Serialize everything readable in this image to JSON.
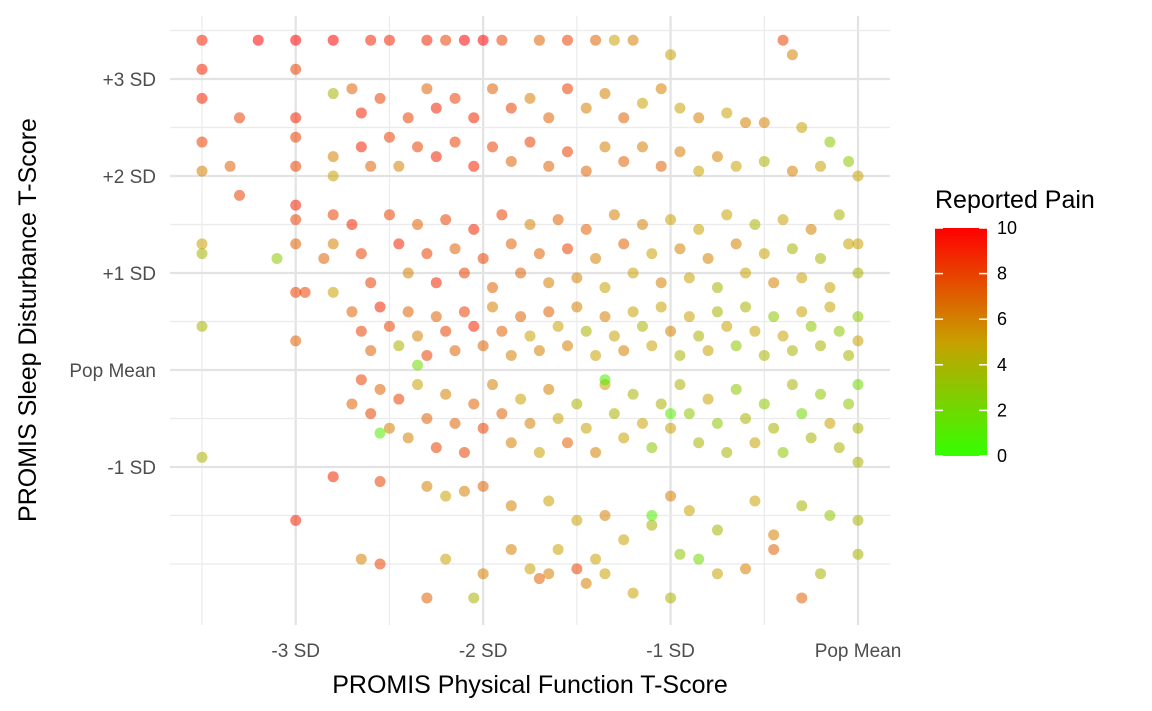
{
  "chart_data": {
    "type": "scatter",
    "xlabel": "PROMIS Physical Function T-Score",
    "ylabel": "PROMIS Sleep Disturbance T-Score",
    "xlim": [
      -3.5,
      0.1
    ],
    "ylim": [
      -2.6,
      3.5
    ],
    "x_ticks": [
      {
        "value": -3,
        "label": "-3 SD"
      },
      {
        "value": -2,
        "label": "-2 SD"
      },
      {
        "value": -1,
        "label": "-1 SD"
      },
      {
        "value": 0,
        "label": "Pop Mean"
      }
    ],
    "y_ticks": [
      {
        "value": 3,
        "label": "+3 SD"
      },
      {
        "value": 2,
        "label": "+2 SD"
      },
      {
        "value": 1,
        "label": "+1 SD"
      },
      {
        "value": 0,
        "label": "Pop Mean"
      },
      {
        "value": -1,
        "label": "-1 SD"
      }
    ],
    "grid": true,
    "color_scale": {
      "title": "Reported Pain",
      "min": 0,
      "max": 10,
      "ticks": [
        "0",
        "2",
        "4",
        "6",
        "8",
        "10"
      ],
      "low_color": "#33ff00",
      "mid_color": "#c8a000",
      "high_color": "#ff0000"
    },
    "legend_position": "right",
    "point_opacity": 0.55,
    "points": [
      [
        -3.5,
        3.4,
        9
      ],
      [
        -3.2,
        3.4,
        10
      ],
      [
        -3.0,
        3.4,
        10
      ],
      [
        -2.8,
        3.4,
        10
      ],
      [
        -2.6,
        3.4,
        9
      ],
      [
        -2.5,
        3.4,
        9
      ],
      [
        -2.3,
        3.4,
        9
      ],
      [
        -2.2,
        3.4,
        8
      ],
      [
        -2.1,
        3.4,
        10
      ],
      [
        -2.0,
        3.4,
        10
      ],
      [
        -1.9,
        3.4,
        8
      ],
      [
        -1.7,
        3.4,
        7
      ],
      [
        -1.55,
        3.4,
        8
      ],
      [
        -1.4,
        3.4,
        7
      ],
      [
        -1.3,
        3.4,
        5
      ],
      [
        -1.2,
        3.4,
        6
      ],
      [
        -1.0,
        3.25,
        5
      ],
      [
        -0.4,
        3.4,
        8
      ],
      [
        -0.35,
        3.25,
        6
      ],
      [
        -3.5,
        3.1,
        9
      ],
      [
        -3.5,
        2.8,
        9
      ],
      [
        -3.3,
        2.6,
        8
      ],
      [
        -3.0,
        2.6,
        9
      ],
      [
        -3.0,
        3.1,
        8
      ],
      [
        -2.8,
        2.85,
        4
      ],
      [
        -2.7,
        2.9,
        7
      ],
      [
        -2.65,
        2.65,
        9
      ],
      [
        -2.55,
        2.8,
        8
      ],
      [
        -2.4,
        2.6,
        8
      ],
      [
        -2.3,
        2.9,
        7
      ],
      [
        -2.25,
        2.7,
        9
      ],
      [
        -2.15,
        2.8,
        8
      ],
      [
        -2.05,
        2.6,
        9
      ],
      [
        -1.95,
        2.9,
        7
      ],
      [
        -1.85,
        2.7,
        8
      ],
      [
        -1.75,
        2.8,
        6
      ],
      [
        -1.65,
        2.6,
        7
      ],
      [
        -1.55,
        2.9,
        8
      ],
      [
        -1.45,
        2.7,
        6
      ],
      [
        -1.35,
        2.85,
        6
      ],
      [
        -1.25,
        2.6,
        7
      ],
      [
        -1.15,
        2.75,
        5
      ],
      [
        -1.05,
        2.9,
        6
      ],
      [
        -0.95,
        2.7,
        5
      ],
      [
        -0.85,
        2.6,
        6
      ],
      [
        -0.7,
        2.65,
        5
      ],
      [
        -0.6,
        2.55,
        6
      ],
      [
        -0.5,
        2.55,
        6
      ],
      [
        -0.3,
        2.5,
        5
      ],
      [
        -3.5,
        2.35,
        8
      ],
      [
        -3.35,
        2.1,
        7
      ],
      [
        -3.3,
        1.8,
        8
      ],
      [
        -3.0,
        2.4,
        8
      ],
      [
        -3.0,
        2.1,
        8
      ],
      [
        -2.8,
        2.2,
        6
      ],
      [
        -2.8,
        2.0,
        5
      ],
      [
        -2.65,
        2.3,
        9
      ],
      [
        -2.6,
        2.1,
        7
      ],
      [
        -2.5,
        2.4,
        8
      ],
      [
        -2.45,
        2.1,
        6
      ],
      [
        -2.35,
        2.3,
        8
      ],
      [
        -2.25,
        2.2,
        9
      ],
      [
        -2.15,
        2.35,
        8
      ],
      [
        -2.05,
        2.1,
        9
      ],
      [
        -1.95,
        2.3,
        8
      ],
      [
        -1.85,
        2.15,
        7
      ],
      [
        -1.75,
        2.35,
        8
      ],
      [
        -1.65,
        2.1,
        7
      ],
      [
        -1.55,
        2.25,
        8
      ],
      [
        -1.45,
        2.05,
        7
      ],
      [
        -1.35,
        2.3,
        6
      ],
      [
        -1.25,
        2.15,
        7
      ],
      [
        -1.15,
        2.3,
        6
      ],
      [
        -1.05,
        2.1,
        7
      ],
      [
        -0.95,
        2.25,
        6
      ],
      [
        -0.85,
        2.05,
        5
      ],
      [
        -0.75,
        2.2,
        6
      ],
      [
        -0.65,
        2.1,
        5
      ],
      [
        -0.5,
        2.15,
        4
      ],
      [
        -0.35,
        2.05,
        6
      ],
      [
        -0.2,
        2.1,
        5
      ],
      [
        -0.05,
        2.15,
        3
      ],
      [
        0.0,
        2.0,
        5
      ],
      [
        -0.15,
        2.35,
        3
      ],
      [
        -3.5,
        2.05,
        6
      ],
      [
        -3.5,
        1.3,
        5
      ],
      [
        -3.5,
        1.2,
        4
      ],
      [
        -3.1,
        1.15,
        3
      ],
      [
        -3.0,
        1.7,
        9
      ],
      [
        -3.0,
        1.55,
        8
      ],
      [
        -3.0,
        1.3,
        7
      ],
      [
        -3.0,
        0.8,
        8
      ],
      [
        -2.95,
        0.8,
        8
      ],
      [
        -2.85,
        1.15,
        7
      ],
      [
        -2.8,
        1.6,
        8
      ],
      [
        -2.8,
        1.3,
        6
      ],
      [
        -2.7,
        1.5,
        9
      ],
      [
        -2.65,
        1.2,
        8
      ],
      [
        -2.6,
        0.9,
        8
      ],
      [
        -2.5,
        1.6,
        8
      ],
      [
        -2.45,
        1.3,
        9
      ],
      [
        -2.4,
        1.0,
        6
      ],
      [
        -2.35,
        1.5,
        7
      ],
      [
        -2.3,
        1.2,
        8
      ],
      [
        -2.25,
        0.9,
        9
      ],
      [
        -2.2,
        1.55,
        8
      ],
      [
        -2.15,
        1.25,
        7
      ],
      [
        -2.1,
        1.0,
        8
      ],
      [
        -2.05,
        1.45,
        9
      ],
      [
        -2.0,
        1.15,
        8
      ],
      [
        -1.95,
        0.85,
        7
      ],
      [
        -1.9,
        1.6,
        8
      ],
      [
        -1.85,
        1.3,
        7
      ],
      [
        -1.8,
        1.0,
        7
      ],
      [
        -1.75,
        1.5,
        6
      ],
      [
        -1.7,
        1.2,
        7
      ],
      [
        -1.65,
        0.9,
        6
      ],
      [
        -1.6,
        1.55,
        7
      ],
      [
        -1.55,
        1.25,
        8
      ],
      [
        -1.5,
        0.95,
        6
      ],
      [
        -1.45,
        1.45,
        7
      ],
      [
        -1.4,
        1.15,
        6
      ],
      [
        -1.35,
        0.85,
        5
      ],
      [
        -1.3,
        1.6,
        6
      ],
      [
        -1.25,
        1.3,
        7
      ],
      [
        -1.2,
        1.0,
        5
      ],
      [
        -1.15,
        1.5,
        6
      ],
      [
        -1.1,
        1.2,
        5
      ],
      [
        -1.05,
        0.9,
        6
      ],
      [
        -1.0,
        1.55,
        5
      ],
      [
        -0.95,
        1.25,
        6
      ],
      [
        -0.9,
        0.95,
        5
      ],
      [
        -0.85,
        1.45,
        5
      ],
      [
        -0.8,
        1.15,
        6
      ],
      [
        -0.75,
        0.85,
        4
      ],
      [
        -0.7,
        1.6,
        5
      ],
      [
        -0.65,
        1.3,
        6
      ],
      [
        -0.6,
        1.0,
        5
      ],
      [
        -0.55,
        1.5,
        4
      ],
      [
        -0.5,
        1.2,
        5
      ],
      [
        -0.45,
        0.9,
        6
      ],
      [
        -0.4,
        1.55,
        5
      ],
      [
        -0.35,
        1.25,
        4
      ],
      [
        -0.3,
        0.95,
        5
      ],
      [
        -0.25,
        1.45,
        6
      ],
      [
        -0.2,
        1.15,
        4
      ],
      [
        -0.15,
        0.85,
        5
      ],
      [
        -0.1,
        1.6,
        4
      ],
      [
        -0.05,
        1.3,
        5
      ],
      [
        0.0,
        1.0,
        4
      ],
      [
        0.0,
        1.3,
        5
      ],
      [
        -3.5,
        0.45,
        4
      ],
      [
        -3.0,
        0.3,
        7
      ],
      [
        -2.8,
        0.8,
        5
      ],
      [
        -2.7,
        0.6,
        7
      ],
      [
        -2.65,
        0.4,
        8
      ],
      [
        -2.6,
        0.2,
        7
      ],
      [
        -2.55,
        0.65,
        9
      ],
      [
        -2.5,
        0.45,
        8
      ],
      [
        -2.45,
        0.25,
        4
      ],
      [
        -2.4,
        0.6,
        7
      ],
      [
        -2.35,
        0.35,
        6
      ],
      [
        -2.3,
        0.15,
        8
      ],
      [
        -2.25,
        0.55,
        7
      ],
      [
        -2.2,
        0.4,
        8
      ],
      [
        -2.15,
        0.2,
        7
      ],
      [
        -2.1,
        0.6,
        8
      ],
      [
        -2.05,
        0.45,
        9
      ],
      [
        -2.0,
        0.25,
        7
      ],
      [
        -1.95,
        0.65,
        6
      ],
      [
        -1.9,
        0.4,
        7
      ],
      [
        -1.85,
        0.15,
        6
      ],
      [
        -1.8,
        0.55,
        7
      ],
      [
        -1.75,
        0.35,
        5
      ],
      [
        -1.7,
        0.2,
        6
      ],
      [
        -1.65,
        0.6,
        7
      ],
      [
        -1.6,
        0.45,
        5
      ],
      [
        -1.55,
        0.25,
        6
      ],
      [
        -1.5,
        0.65,
        6
      ],
      [
        -1.45,
        0.4,
        4
      ],
      [
        -1.4,
        0.15,
        5
      ],
      [
        -1.35,
        0.55,
        6
      ],
      [
        -1.3,
        0.35,
        5
      ],
      [
        -1.25,
        0.2,
        6
      ],
      [
        -1.2,
        0.6,
        5
      ],
      [
        -1.15,
        0.45,
        4
      ],
      [
        -1.1,
        0.25,
        5
      ],
      [
        -1.05,
        0.65,
        5
      ],
      [
        -1.0,
        0.4,
        6
      ],
      [
        -0.95,
        0.15,
        4
      ],
      [
        -0.9,
        0.55,
        5
      ],
      [
        -0.85,
        0.35,
        4
      ],
      [
        -0.8,
        0.2,
        5
      ],
      [
        -0.75,
        0.6,
        4
      ],
      [
        -0.7,
        0.45,
        5
      ],
      [
        -0.65,
        0.25,
        3
      ],
      [
        -0.6,
        0.65,
        4
      ],
      [
        -0.55,
        0.4,
        5
      ],
      [
        -0.5,
        0.15,
        4
      ],
      [
        -0.45,
        0.55,
        3
      ],
      [
        -0.4,
        0.35,
        5
      ],
      [
        -0.35,
        0.2,
        4
      ],
      [
        -0.3,
        0.6,
        5
      ],
      [
        -0.25,
        0.45,
        3
      ],
      [
        -0.2,
        0.25,
        4
      ],
      [
        -0.15,
        0.65,
        5
      ],
      [
        -0.1,
        0.4,
        3
      ],
      [
        -0.05,
        0.15,
        4
      ],
      [
        0.0,
        0.55,
        3
      ],
      [
        0.0,
        0.3,
        5
      ],
      [
        -2.35,
        0.05,
        2
      ],
      [
        -2.7,
        -0.35,
        7
      ],
      [
        -2.65,
        -0.1,
        8
      ],
      [
        -2.6,
        -0.45,
        8
      ],
      [
        -2.55,
        -0.2,
        7
      ],
      [
        -2.5,
        -0.6,
        6
      ],
      [
        -2.45,
        -0.3,
        8
      ],
      [
        -2.4,
        -0.7,
        6
      ],
      [
        -2.35,
        -0.15,
        5
      ],
      [
        -2.3,
        -0.5,
        7
      ],
      [
        -2.25,
        -0.8,
        8
      ],
      [
        -2.2,
        -0.25,
        6
      ],
      [
        -2.15,
        -0.55,
        7
      ],
      [
        -2.1,
        -0.85,
        8
      ],
      [
        -2.05,
        -0.35,
        7
      ],
      [
        -2.0,
        -0.6,
        8
      ],
      [
        -1.95,
        -0.15,
        6
      ],
      [
        -1.9,
        -0.45,
        7
      ],
      [
        -1.85,
        -0.75,
        6
      ],
      [
        -1.8,
        -0.3,
        5
      ],
      [
        -1.75,
        -0.55,
        6
      ],
      [
        -1.7,
        -0.85,
        5
      ],
      [
        -1.65,
        -0.2,
        6
      ],
      [
        -1.6,
        -0.5,
        5
      ],
      [
        -1.55,
        -0.75,
        7
      ],
      [
        -1.5,
        -0.35,
        4
      ],
      [
        -1.45,
        -0.6,
        5
      ],
      [
        -1.4,
        -0.85,
        6
      ],
      [
        -1.35,
        -0.15,
        5
      ],
      [
        -1.3,
        -0.45,
        4
      ],
      [
        -1.25,
        -0.7,
        5
      ],
      [
        -1.2,
        -0.25,
        4
      ],
      [
        -1.15,
        -0.55,
        5
      ],
      [
        -1.1,
        -0.8,
        3
      ],
      [
        -1.05,
        -0.35,
        4
      ],
      [
        -1.0,
        -0.6,
        5
      ],
      [
        -0.95,
        -0.15,
        4
      ],
      [
        -0.9,
        -0.45,
        3
      ],
      [
        -0.85,
        -0.75,
        4
      ],
      [
        -0.8,
        -0.3,
        5
      ],
      [
        -0.75,
        -0.55,
        3
      ],
      [
        -0.7,
        -0.85,
        4
      ],
      [
        -0.65,
        -0.2,
        3
      ],
      [
        -0.6,
        -0.5,
        4
      ],
      [
        -0.55,
        -0.75,
        5
      ],
      [
        -0.5,
        -0.35,
        3
      ],
      [
        -0.45,
        -0.6,
        4
      ],
      [
        -0.4,
        -0.85,
        3
      ],
      [
        -0.35,
        -0.15,
        4
      ],
      [
        -0.3,
        -0.45,
        2
      ],
      [
        -0.25,
        -0.7,
        4
      ],
      [
        -0.2,
        -0.25,
        3
      ],
      [
        -0.15,
        -0.55,
        5
      ],
      [
        -0.1,
        -0.8,
        4
      ],
      [
        -0.05,
        -0.35,
        3
      ],
      [
        0.0,
        -0.6,
        4
      ],
      [
        0.0,
        -0.15,
        2
      ],
      [
        0.0,
        -0.95,
        4
      ],
      [
        -2.55,
        -0.65,
        1
      ],
      [
        -1.35,
        -0.1,
        1
      ],
      [
        -1.0,
        -0.45,
        1
      ],
      [
        -3.5,
        -0.9,
        4
      ],
      [
        -2.8,
        -1.1,
        9
      ],
      [
        -2.55,
        -1.15,
        8
      ],
      [
        -2.3,
        -1.2,
        6
      ],
      [
        -2.2,
        -1.3,
        5
      ],
      [
        -2.1,
        -1.25,
        6
      ],
      [
        -2.0,
        -1.2,
        7
      ],
      [
        -1.85,
        -1.4,
        6
      ],
      [
        -1.65,
        -1.35,
        5
      ],
      [
        -1.5,
        -1.55,
        5
      ],
      [
        -1.35,
        -1.5,
        6
      ],
      [
        -1.25,
        -1.75,
        5
      ],
      [
        -1.1,
        -1.6,
        4
      ],
      [
        -1.0,
        -1.3,
        6
      ],
      [
        -0.9,
        -1.45,
        5
      ],
      [
        -0.75,
        -1.65,
        4
      ],
      [
        -0.55,
        -1.35,
        5
      ],
      [
        -0.45,
        -1.7,
        6
      ],
      [
        -0.3,
        -1.4,
        4
      ],
      [
        -0.15,
        -1.5,
        3
      ],
      [
        0.0,
        -1.55,
        4
      ],
      [
        0.0,
        -1.9,
        4
      ],
      [
        -1.1,
        -1.5,
        1
      ],
      [
        -3.0,
        -1.55,
        9
      ],
      [
        -2.65,
        -1.95,
        6
      ],
      [
        -2.55,
        -2.0,
        8
      ],
      [
        -2.3,
        -2.35,
        7
      ],
      [
        -2.2,
        -1.95,
        5
      ],
      [
        -2.0,
        -2.1,
        6
      ],
      [
        -1.85,
        -1.85,
        6
      ],
      [
        -1.75,
        -2.05,
        5
      ],
      [
        -1.65,
        -2.1,
        6
      ],
      [
        -1.6,
        -1.85,
        5
      ],
      [
        -1.5,
        -2.05,
        8
      ],
      [
        -1.45,
        -2.2,
        6
      ],
      [
        -1.4,
        -1.95,
        5
      ],
      [
        -1.2,
        -2.3,
        5
      ],
      [
        -1.0,
        -2.35,
        4
      ],
      [
        -0.95,
        -1.9,
        3
      ],
      [
        -0.75,
        -2.1,
        5
      ],
      [
        -0.6,
        -2.05,
        6
      ],
      [
        -0.3,
        -2.35,
        7
      ],
      [
        -2.05,
        -2.35,
        4
      ],
      [
        -1.7,
        -2.15,
        7
      ],
      [
        -1.35,
        -2.1,
        5
      ],
      [
        -0.85,
        -1.95,
        2
      ],
      [
        -0.45,
        -1.85,
        7
      ],
      [
        -0.2,
        -2.1,
        4
      ]
    ]
  }
}
